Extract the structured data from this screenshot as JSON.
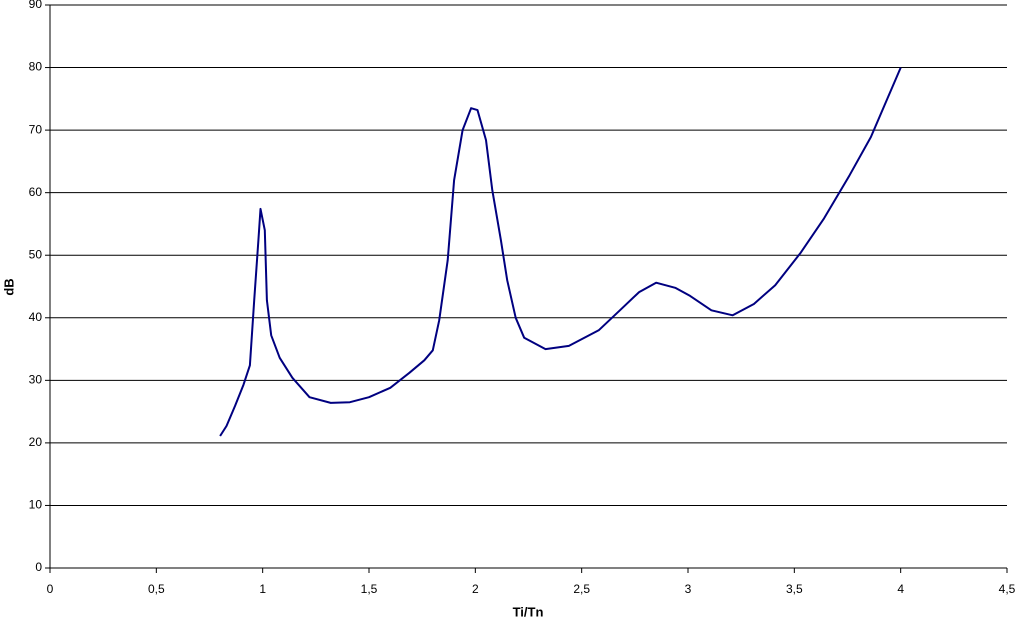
{
  "chart_data": {
    "type": "line",
    "x_label": "Ti/Tn",
    "y_label": "dB",
    "x": [
      0.8,
      0.83,
      0.87,
      0.91,
      0.94,
      0.96,
      0.98,
      0.99,
      1.01,
      1.02,
      1.04,
      1.08,
      1.14,
      1.22,
      1.32,
      1.41,
      1.5,
      1.6,
      1.69,
      1.76,
      1.8,
      1.83,
      1.87,
      1.9,
      1.94,
      1.98,
      2.01,
      2.05,
      2.08,
      2.12,
      2.15,
      2.19,
      2.23,
      2.33,
      2.44,
      2.58,
      2.68,
      2.77,
      2.85,
      2.94,
      3.01,
      3.11,
      3.21,
      3.31,
      3.41,
      3.53,
      3.64,
      3.76,
      3.86,
      4.0
    ],
    "values": [
      21.1,
      22.7,
      25.9,
      29.3,
      32.4,
      42.8,
      52.4,
      57.4,
      54,
      42.8,
      37.2,
      33.6,
      30.4,
      27.3,
      26.4,
      26.5,
      27.3,
      28.8,
      31.2,
      33.2,
      34.8,
      39.6,
      49.2,
      62,
      70,
      73.5,
      73.2,
      68.4,
      60.4,
      52.4,
      46,
      40,
      36.8,
      35,
      35.5,
      38,
      41.2,
      44.1,
      45.6,
      44.8,
      43.5,
      41.2,
      40.4,
      42.2,
      45.2,
      50.4,
      55.9,
      62.8,
      68.9,
      80
    ],
    "color": "#000080",
    "xlim": [
      0,
      4.5
    ],
    "ylim": [
      0,
      90
    ],
    "xticks": [
      0,
      {
        "value": 0.5,
        "label": "0,5"
      },
      1,
      {
        "value": 1.5,
        "label": "1,5"
      },
      2,
      {
        "value": 2.5,
        "label": "2,5"
      },
      3,
      {
        "value": 3.5,
        "label": "3,5"
      },
      4,
      {
        "value": 4.5,
        "label": "4,5"
      }
    ],
    "yticks": [
      0,
      10,
      20,
      30,
      40,
      50,
      60,
      70,
      80,
      90
    ],
    "grid": true
  }
}
